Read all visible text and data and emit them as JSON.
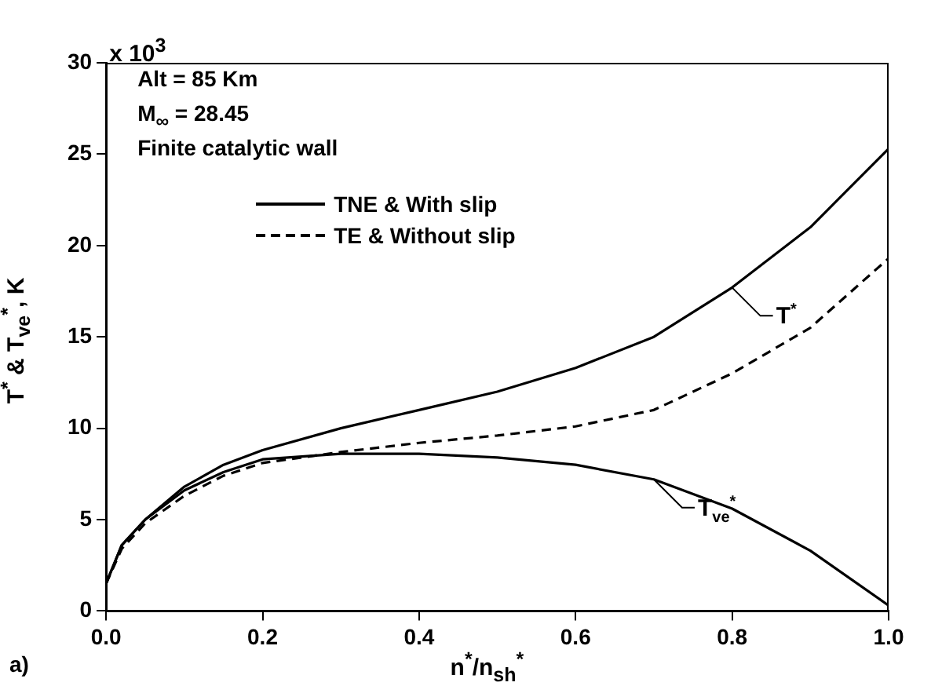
{
  "chart_data": {
    "type": "line",
    "xlabel": "n$^{*}$/n$_{sh}$$^{*}$",
    "ylabel": "T$^{*}$ & T$_{ve}$$^{*}$, K",
    "x": [
      0,
      0.02,
      0.05,
      0.1,
      0.15,
      0.2,
      0.3,
      0.4,
      0.5,
      0.6,
      0.7,
      0.8,
      0.9,
      1.0
    ],
    "series": [
      {
        "name": "TNE & With slip",
        "color": "#000000",
        "line_style": "solid",
        "values": [
          1.5,
          3.6,
          5.0,
          6.8,
          8.0,
          8.8,
          10.0,
          11.0,
          12.0,
          13.3,
          15.0,
          17.7,
          21.0,
          25.3
        ]
      },
      {
        "color": "#000000",
        "line_style": "solid",
        "values": [
          1.5,
          3.6,
          5.0,
          6.6,
          7.6,
          8.3,
          8.6,
          8.6,
          8.4,
          8.0,
          7.2,
          5.6,
          3.3,
          0.3
        ]
      },
      {
        "name": "TE & Without slip",
        "color": "#000000",
        "line_style": "dashed",
        "values": [
          1.5,
          3.4,
          4.8,
          6.3,
          7.4,
          8.1,
          8.7,
          9.2,
          9.6,
          10.1,
          11.0,
          13.0,
          15.5,
          19.3
        ]
      }
    ],
    "xlim": [
      0,
      1
    ],
    "xticks": [
      {
        "value": 0,
        "label": "0.0"
      },
      {
        "value": 0.2,
        "label": "0.2"
      },
      {
        "value": 0.4,
        "label": "0.4"
      },
      {
        "value": 0.6,
        "label": "0.6"
      },
      {
        "value": 0.8,
        "label": "0.8"
      },
      {
        "value": 1,
        "label": "1.0"
      }
    ],
    "ylim": [
      0,
      30
    ],
    "yticks": [
      0,
      5,
      10,
      15,
      20,
      25,
      30
    ],
    "marker": "none",
    "grid": false,
    "legend": "top left",
    "annotations": [
      "x 10$^{3}$",
      "Alt = 85 Km",
      "M$_{∞}$ = 28.45",
      "Finite catalytic wall",
      "a)",
      {
        "text": "T$^{*}$",
        "x": 0.8,
        "y": 17.7
      },
      {
        "text": "T$_{ve}$$^{*}$",
        "x": 0.7,
        "y": 7.2
      }
    ]
  }
}
